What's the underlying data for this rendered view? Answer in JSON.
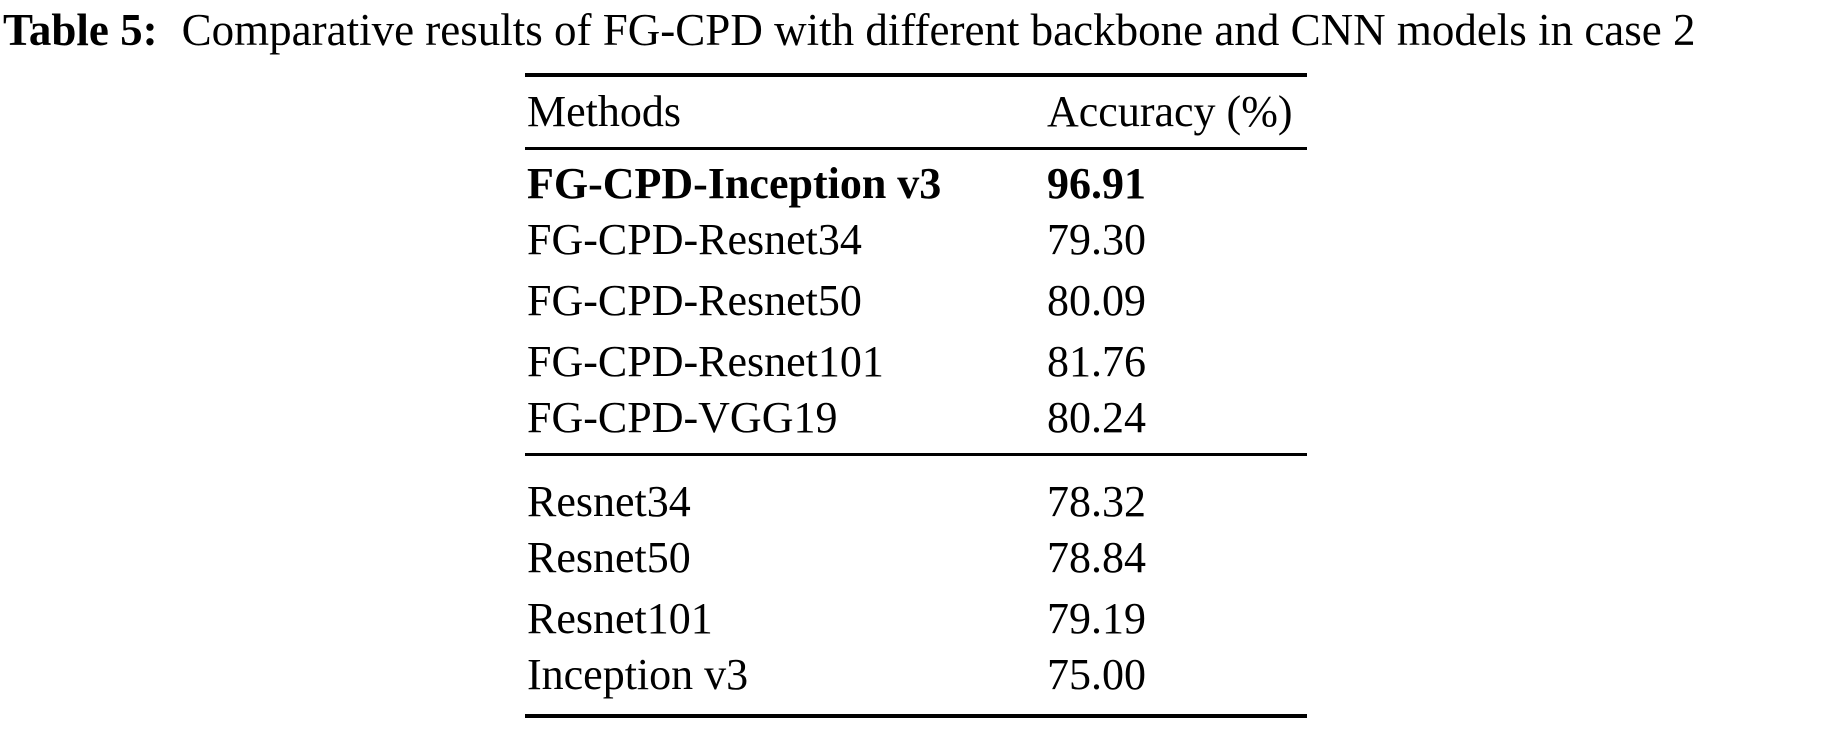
{
  "caption": {
    "label": "Table 5:",
    "text": "Comparative results of FG-CPD with different backbone and CNN models in case 2"
  },
  "table": {
    "columns": [
      "Methods",
      "Accuracy (%)"
    ],
    "groups": [
      {
        "rows": [
          {
            "method": "FG-CPD-Inception v3",
            "accuracy": "96.91",
            "bold": true
          },
          {
            "method": "FG-CPD-Resnet34",
            "accuracy": "79.30",
            "bold": false
          },
          {
            "method": "FG-CPD-Resnet50",
            "accuracy": "80.09",
            "bold": false
          },
          {
            "method": "FG-CPD-Resnet101",
            "accuracy": "81.76",
            "bold": false
          },
          {
            "method": "FG-CPD-VGG19",
            "accuracy": "80.24",
            "bold": false
          }
        ]
      },
      {
        "rows": [
          {
            "method": "Resnet34",
            "accuracy": "78.32",
            "bold": false
          },
          {
            "method": "Resnet50",
            "accuracy": "78.84",
            "bold": false
          },
          {
            "method": "Resnet101",
            "accuracy": "79.19",
            "bold": false
          },
          {
            "method": "Inception v3",
            "accuracy": "75.00",
            "bold": false
          }
        ]
      }
    ]
  },
  "colors": {
    "text": "#000000",
    "background": "#ffffff",
    "rule": "#000000"
  }
}
